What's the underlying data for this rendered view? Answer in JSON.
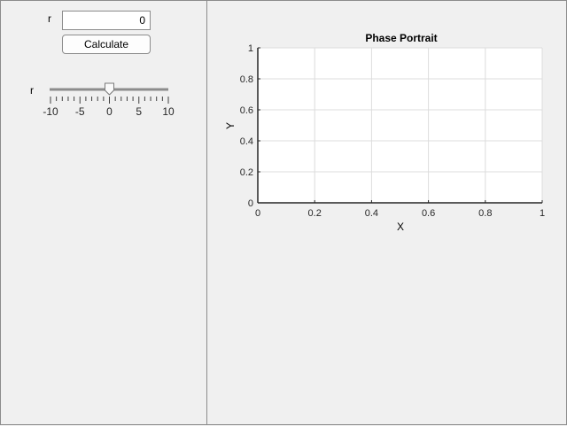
{
  "controls": {
    "r_field_label": "r",
    "r_field_value": "0",
    "calculate_label": "Calculate",
    "slider_label": "r",
    "slider": {
      "min": -10,
      "max": 10,
      "value": 0,
      "major_ticks": [
        -10,
        -5,
        0,
        5,
        10
      ],
      "tick_labels": [
        "-10",
        "-5",
        "0",
        "5",
        "10"
      ]
    }
  },
  "chart_data": {
    "type": "line",
    "title": "Phase Portrait",
    "xlabel": "X",
    "ylabel": "Y",
    "xlim": [
      0,
      1
    ],
    "ylim": [
      0,
      1
    ],
    "x_ticks": [
      "0",
      "0.2",
      "0.4",
      "0.6",
      "0.8",
      "1"
    ],
    "y_ticks": [
      "0",
      "0.2",
      "0.4",
      "0.6",
      "0.8",
      "1"
    ],
    "grid": true,
    "series": []
  }
}
